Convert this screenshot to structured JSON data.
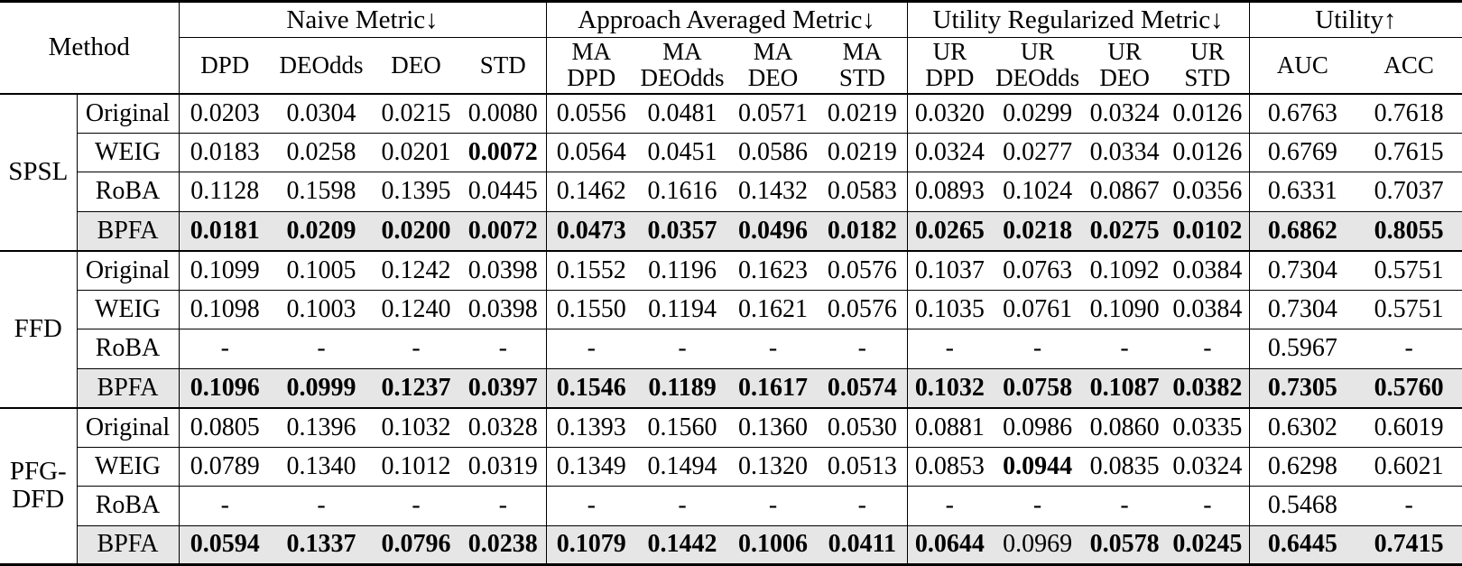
{
  "meta": {
    "highlight_row_color": "#e6e6e6",
    "border_color": "#000000",
    "text_color": "#000000"
  },
  "table": {
    "header": {
      "method_label": "Method",
      "groups": [
        {
          "label": "Naive Metric↓"
        },
        {
          "label": "Approach Averaged Metric↓"
        },
        {
          "label": "Utility Regularized Metric↓"
        },
        {
          "label": "Utility↑"
        }
      ],
      "subcols": [
        "DPD",
        "DEOdds",
        "DEO",
        "STD",
        "MA\nDPD",
        "MA\nDEOdds",
        "MA\nDEO",
        "MA\nSTD",
        "UR\nDPD",
        "UR\nDEOdds",
        "UR\nDEO",
        "UR\nSTD",
        "AUC",
        "ACC"
      ]
    },
    "blocks": [
      {
        "method": "SPSL",
        "method_display": "SPSL",
        "rows": [
          {
            "variant": "Original",
            "highlight": false,
            "values": [
              "0.0203",
              "0.0304",
              "0.0215",
              "0.0080",
              "0.0556",
              "0.0481",
              "0.0571",
              "0.0219",
              "0.0320",
              "0.0299",
              "0.0324",
              "0.0126",
              "0.6763",
              "0.7618"
            ],
            "bold": [
              0,
              0,
              0,
              0,
              0,
              0,
              0,
              0,
              0,
              0,
              0,
              0,
              0,
              0
            ]
          },
          {
            "variant": "WEIG",
            "highlight": false,
            "values": [
              "0.0183",
              "0.0258",
              "0.0201",
              "0.0072",
              "0.0564",
              "0.0451",
              "0.0586",
              "0.0219",
              "0.0324",
              "0.0277",
              "0.0334",
              "0.0126",
              "0.6769",
              "0.7615"
            ],
            "bold": [
              0,
              0,
              0,
              1,
              0,
              0,
              0,
              0,
              0,
              0,
              0,
              0,
              0,
              0
            ]
          },
          {
            "variant": "RoBA",
            "highlight": false,
            "values": [
              "0.1128",
              "0.1598",
              "0.1395",
              "0.0445",
              "0.1462",
              "0.1616",
              "0.1432",
              "0.0583",
              "0.0893",
              "0.1024",
              "0.0867",
              "0.0356",
              "0.6331",
              "0.7037"
            ],
            "bold": [
              0,
              0,
              0,
              0,
              0,
              0,
              0,
              0,
              0,
              0,
              0,
              0,
              0,
              0
            ]
          },
          {
            "variant": "BPFA",
            "highlight": true,
            "values": [
              "0.0181",
              "0.0209",
              "0.0200",
              "0.0072",
              "0.0473",
              "0.0357",
              "0.0496",
              "0.0182",
              "0.0265",
              "0.0218",
              "0.0275",
              "0.0102",
              "0.6862",
              "0.8055"
            ],
            "bold": [
              1,
              1,
              1,
              1,
              1,
              1,
              1,
              1,
              1,
              1,
              1,
              1,
              1,
              1
            ]
          }
        ]
      },
      {
        "method": "FFD",
        "method_display": "FFD",
        "rows": [
          {
            "variant": "Original",
            "highlight": false,
            "values": [
              "0.1099",
              "0.1005",
              "0.1242",
              "0.0398",
              "0.1552",
              "0.1196",
              "0.1623",
              "0.0576",
              "0.1037",
              "0.0763",
              "0.1092",
              "0.0384",
              "0.7304",
              "0.5751"
            ],
            "bold": [
              0,
              0,
              0,
              0,
              0,
              0,
              0,
              0,
              0,
              0,
              0,
              0,
              0,
              0
            ]
          },
          {
            "variant": "WEIG",
            "highlight": false,
            "values": [
              "0.1098",
              "0.1003",
              "0.1240",
              "0.0398",
              "0.1550",
              "0.1194",
              "0.1621",
              "0.0576",
              "0.1035",
              "0.0761",
              "0.1090",
              "0.0384",
              "0.7304",
              "0.5751"
            ],
            "bold": [
              0,
              0,
              0,
              0,
              0,
              0,
              0,
              0,
              0,
              0,
              0,
              0,
              0,
              0
            ]
          },
          {
            "variant": "RoBA",
            "highlight": false,
            "values": [
              "-",
              "-",
              "-",
              "-",
              "-",
              "-",
              "-",
              "-",
              "-",
              "-",
              "-",
              "-",
              "0.5967",
              "-"
            ],
            "bold": [
              0,
              0,
              0,
              0,
              0,
              0,
              0,
              0,
              0,
              0,
              0,
              0,
              0,
              0
            ]
          },
          {
            "variant": "BPFA",
            "highlight": true,
            "values": [
              "0.1096",
              "0.0999",
              "0.1237",
              "0.0397",
              "0.1546",
              "0.1189",
              "0.1617",
              "0.0574",
              "0.1032",
              "0.0758",
              "0.1087",
              "0.0382",
              "0.7305",
              "0.5760"
            ],
            "bold": [
              1,
              1,
              1,
              1,
              1,
              1,
              1,
              1,
              1,
              1,
              1,
              1,
              1,
              1
            ]
          }
        ]
      },
      {
        "method": "PFG-DFD",
        "method_display": "PFG-\nDFD",
        "rows": [
          {
            "variant": "Original",
            "highlight": false,
            "values": [
              "0.0805",
              "0.1396",
              "0.1032",
              "0.0328",
              "0.1393",
              "0.1560",
              "0.1360",
              "0.0530",
              "0.0881",
              "0.0986",
              "0.0860",
              "0.0335",
              "0.6302",
              "0.6019"
            ],
            "bold": [
              0,
              0,
              0,
              0,
              0,
              0,
              0,
              0,
              0,
              0,
              0,
              0,
              0,
              0
            ]
          },
          {
            "variant": "WEIG",
            "highlight": false,
            "values": [
              "0.0789",
              "0.1340",
              "0.1012",
              "0.0319",
              "0.1349",
              "0.1494",
              "0.1320",
              "0.0513",
              "0.0853",
              "0.0944",
              "0.0835",
              "0.0324",
              "0.6298",
              "0.6021"
            ],
            "bold": [
              0,
              0,
              0,
              0,
              0,
              0,
              0,
              0,
              0,
              1,
              0,
              0,
              0,
              0
            ]
          },
          {
            "variant": "RoBA",
            "highlight": false,
            "values": [
              "-",
              "-",
              "-",
              "-",
              "-",
              "-",
              "-",
              "-",
              "-",
              "-",
              "-",
              "-",
              "0.5468",
              "-"
            ],
            "bold": [
              0,
              0,
              0,
              0,
              0,
              0,
              0,
              0,
              0,
              0,
              0,
              0,
              0,
              0
            ]
          },
          {
            "variant": "BPFA",
            "highlight": true,
            "values": [
              "0.0594",
              "0.1337",
              "0.0796",
              "0.0238",
              "0.1079",
              "0.1442",
              "0.1006",
              "0.0411",
              "0.0644",
              "0.0969",
              "0.0578",
              "0.0245",
              "0.6445",
              "0.7415"
            ],
            "bold": [
              1,
              1,
              1,
              1,
              1,
              1,
              1,
              1,
              1,
              0,
              1,
              1,
              1,
              1
            ]
          }
        ]
      }
    ]
  }
}
